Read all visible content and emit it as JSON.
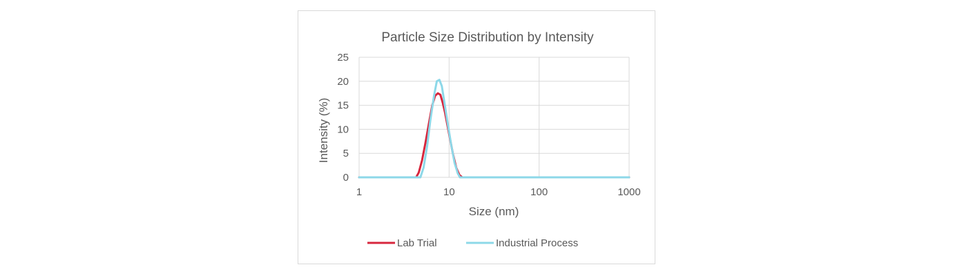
{
  "chart_data": {
    "type": "line",
    "title": "Particle Size Distribution by Intensity",
    "xlabel": "Size (nm)",
    "ylabel": "Intensity (%)",
    "xscale": "log",
    "xlim": [
      1,
      1000
    ],
    "ylim": [
      0,
      25
    ],
    "x_ticks": [
      "1",
      "10",
      "100",
      "1000"
    ],
    "y_ticks": [
      "0",
      "5",
      "10",
      "15",
      "20",
      "25"
    ],
    "grid": true,
    "legend_position": "bottom",
    "series": [
      {
        "name": "Lab Trial",
        "color": "#d7263d",
        "x": [
          1,
          4.3,
          4.6,
          5.0,
          5.5,
          6.0,
          6.5,
          7.0,
          7.5,
          8.0,
          8.5,
          9.0,
          10.0,
          11.0,
          12.0,
          13.0,
          14.0,
          1000
        ],
        "y": [
          0,
          0,
          1.0,
          3.5,
          7.5,
          11.5,
          15.0,
          17.0,
          17.5,
          17.2,
          15.5,
          13.5,
          9.0,
          5.0,
          2.0,
          0.5,
          0,
          0
        ]
      },
      {
        "name": "Industrial Process",
        "color": "#8dd8e8",
        "x": [
          1,
          4.8,
          5.2,
          5.7,
          6.2,
          6.8,
          7.3,
          7.8,
          8.3,
          8.8,
          9.5,
          10.5,
          11.5,
          12.5,
          13.2,
          1000
        ],
        "y": [
          0,
          0,
          2.0,
          6.5,
          12.0,
          17.0,
          20.0,
          20.3,
          19.0,
          16.0,
          12.0,
          7.0,
          3.0,
          0.8,
          0,
          0
        ]
      }
    ]
  }
}
